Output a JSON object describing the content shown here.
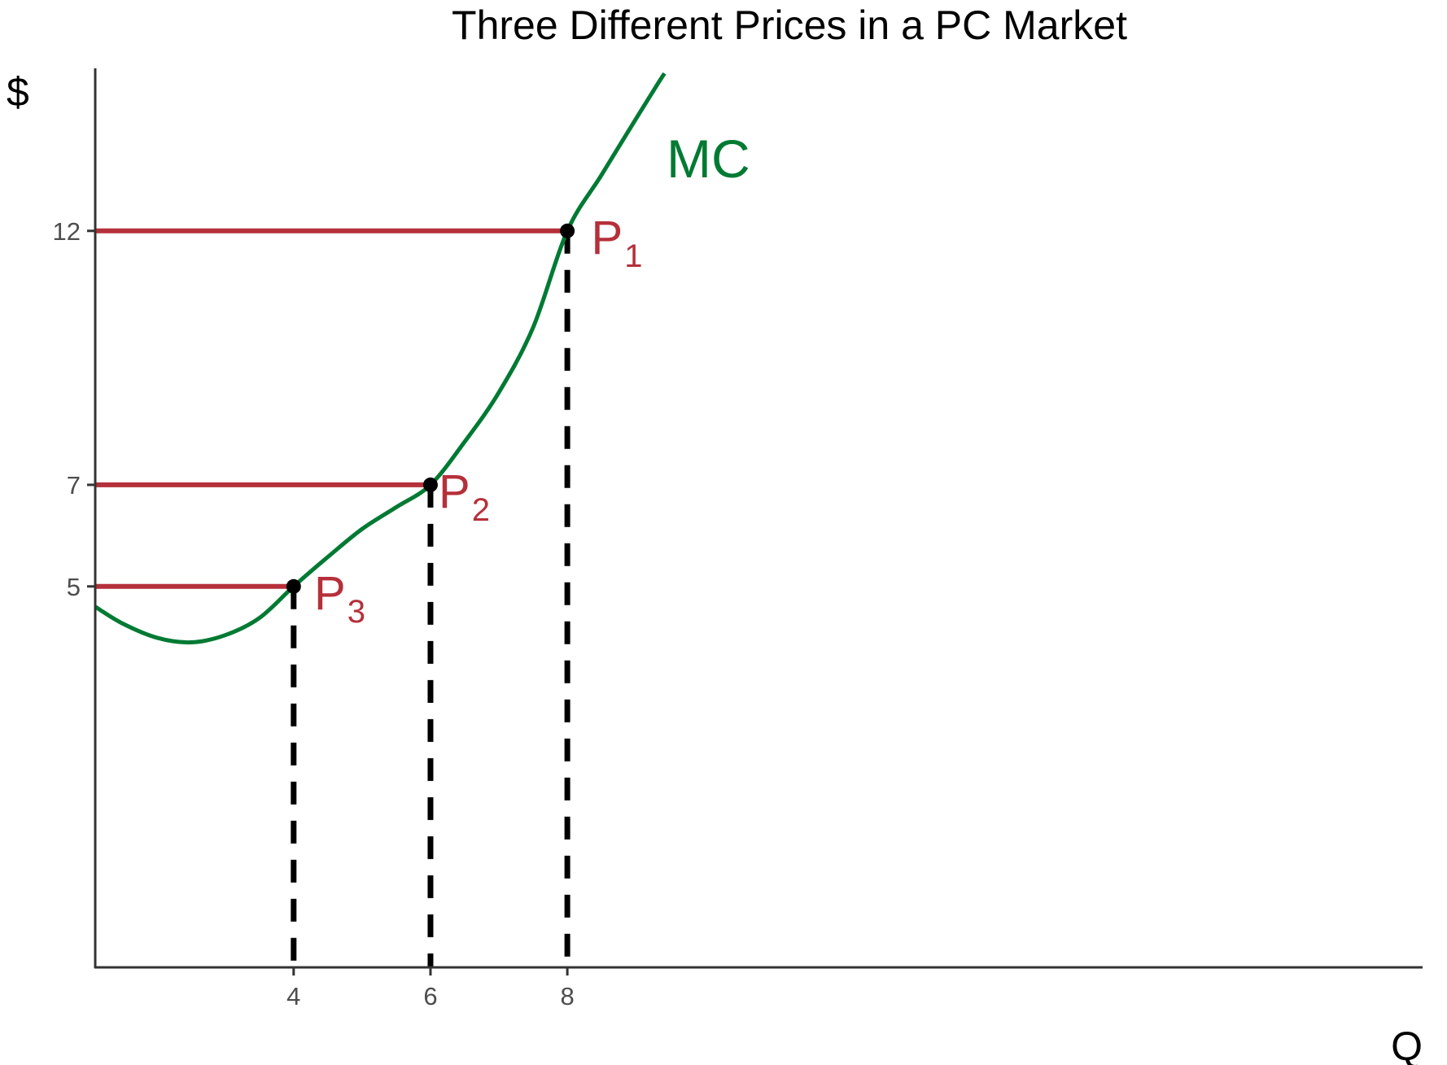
{
  "chart_data": {
    "type": "line",
    "title": "Three Different Prices in a PC Market",
    "xlabel": "Q",
    "ylabel": "$",
    "xlim": [
      1.1,
      20.5
    ],
    "ylim": [
      -2.5,
      15.2
    ],
    "grid": false,
    "legend": "none",
    "x_ticks": [
      {
        "value": 4,
        "label": "4"
      },
      {
        "value": 6,
        "label": "6"
      },
      {
        "value": 8,
        "label": "8"
      }
    ],
    "y_ticks": [
      {
        "value": 5,
        "label": "5"
      },
      {
        "value": 7,
        "label": "7"
      },
      {
        "value": 12,
        "label": "12"
      }
    ],
    "series": [
      {
        "name": "MC",
        "color": "#007A33",
        "label_at": [
          9.45,
          13.05
        ],
        "x": [
          1.1,
          1.5,
          2.0,
          2.5,
          3.0,
          3.5,
          4.0,
          4.5,
          5.0,
          5.5,
          6.0,
          6.5,
          7.0,
          7.5,
          8.0,
          8.5,
          9.0,
          9.3,
          9.42
        ],
        "y": [
          4.6,
          4.27,
          3.99,
          3.9,
          4.04,
          4.38,
          5.0,
          5.58,
          6.13,
          6.56,
          7.0,
          7.85,
          8.82,
          10.1,
          12.0,
          13.1,
          14.2,
          14.85,
          15.1
        ]
      }
    ],
    "price_levels": [
      {
        "label": "P",
        "subscript": "1",
        "price": 12,
        "quantity": 8,
        "label_at": [
          8.35,
          11.55
        ]
      },
      {
        "label": "P",
        "subscript": "2",
        "price": 7,
        "quantity": 6,
        "label_at": [
          6.12,
          6.55
        ]
      },
      {
        "label": "P",
        "subscript": "3",
        "price": 5,
        "quantity": 4,
        "label_at": [
          4.3,
          4.55
        ]
      }
    ],
    "colors": {
      "mc": "#007A33",
      "price": "#B5303A",
      "drop": "#000000",
      "axis": "#333333"
    }
  }
}
